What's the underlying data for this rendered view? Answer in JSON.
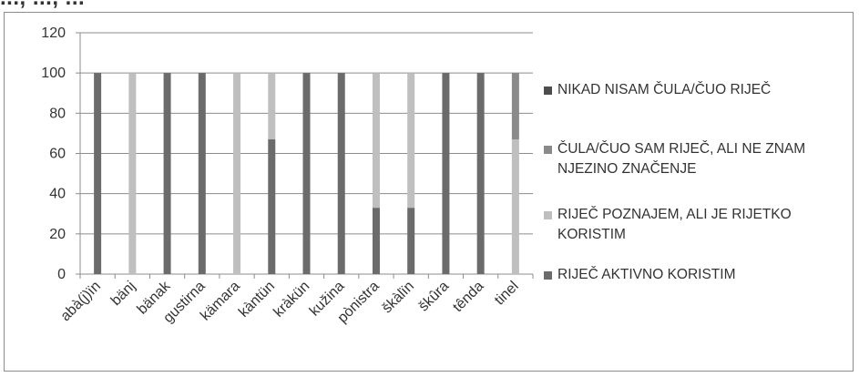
{
  "page": {
    "cut_title": "..., ..., ..."
  },
  "chart_data": {
    "type": "bar",
    "stacked": true,
    "title": "",
    "xlabel": "",
    "ylabel": "",
    "ylim": [
      0,
      120
    ],
    "yticks": [
      0,
      20,
      40,
      60,
      80,
      100,
      120
    ],
    "grid": true,
    "legend_position": "right",
    "categories": [
      "abà(j)ïn",
      "bänj",
      "bänak",
      "gustirna",
      "kämara",
      "kàntün",
      "kràkün",
      "kužina",
      "pònistra",
      "škàlïn",
      "škûra",
      "tênda",
      "tinel"
    ],
    "series": [
      {
        "name": "NIKAD NISAM ČULA/ČUO RIJEČ",
        "color": "#4d4d4d",
        "values": [
          0,
          0,
          0,
          0,
          0,
          0,
          0,
          0,
          0,
          0,
          0,
          0,
          0
        ]
      },
      {
        "name": "ČULA/ČUO SAM RIJEČ,  ALI NE ZNAM NJEZINO ZNAČENJE",
        "color": "#8a8a8a",
        "values": [
          0,
          0,
          0,
          0,
          0,
          0,
          0,
          0,
          0,
          0,
          0,
          0,
          33
        ]
      },
      {
        "name": "RIJEČ POZNAJEM, ALI JE RIJETKO KORISTIM",
        "color": "#bfbfbf",
        "values": [
          0,
          100,
          0,
          0,
          100,
          33,
          0,
          0,
          67,
          67,
          0,
          0,
          67
        ]
      },
      {
        "name": "RIJEČ AKTIVNO KORISTIM",
        "color": "#6b6b6b",
        "values": [
          100,
          0,
          100,
          100,
          0,
          67,
          100,
          100,
          33,
          33,
          100,
          100,
          0
        ]
      }
    ]
  }
}
